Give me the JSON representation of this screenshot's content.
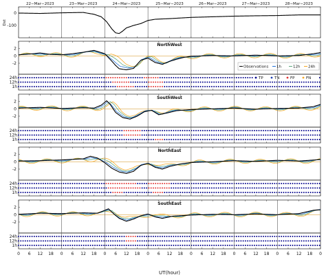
{
  "chart_data": {
    "type": "line",
    "days": [
      "22−Mar−2023",
      "23−Mar−2023",
      "24−Mar−2023",
      "25−Mar−2023",
      "26−Mar−2023",
      "27−Mar−2023",
      "28−Mar−2023"
    ],
    "xlabel": "UT(hour)",
    "x_ticks": [
      0,
      6,
      12,
      18
    ],
    "x_range_hours": [
      0,
      168
    ],
    "colors": {
      "observations": "#000000",
      "h1": "#1f6fd6",
      "h12": "#5aa77c",
      "h24": "#f5a623",
      "TP": "#00008b",
      "TN": "#1f3fb0",
      "FP": "#e03030",
      "FN": "#f5a623",
      "zero_line": "#d9a441"
    },
    "dst": {
      "ylabel": "Dst",
      "y_ticks": [
        "0",
        "-100"
      ],
      "ylim": [
        -200,
        50
      ],
      "points": [
        [
          0,
          0
        ],
        [
          12,
          -3
        ],
        [
          24,
          2
        ],
        [
          36,
          5
        ],
        [
          42,
          -10
        ],
        [
          46,
          -30
        ],
        [
          49,
          -70
        ],
        [
          52,
          -130
        ],
        [
          54,
          -160
        ],
        [
          56,
          -165
        ],
        [
          58,
          -145
        ],
        [
          60,
          -120
        ],
        [
          64,
          -100
        ],
        [
          68,
          -85
        ],
        [
          72,
          -60
        ],
        [
          76,
          -50
        ],
        [
          84,
          -45
        ],
        [
          96,
          -35
        ],
        [
          108,
          -30
        ],
        [
          120,
          -25
        ],
        [
          132,
          -22
        ],
        [
          144,
          -20
        ],
        [
          156,
          -15
        ],
        [
          168,
          -15
        ]
      ]
    },
    "panels": [
      {
        "title": "NorthWest",
        "y_ticks": [
          "2",
          "0",
          "-2"
        ],
        "obs": [
          [
            0,
            0.3
          ],
          [
            6,
            0.5
          ],
          [
            12,
            0.8
          ],
          [
            18,
            0.4
          ],
          [
            24,
            0.3
          ],
          [
            30,
            0.6
          ],
          [
            36,
            1.0
          ],
          [
            42,
            1.5
          ],
          [
            48,
            0.6
          ],
          [
            52,
            -1.5
          ],
          [
            54,
            -2.6
          ],
          [
            56,
            -3.5
          ],
          [
            60,
            -3.8
          ],
          [
            64,
            -3.4
          ],
          [
            68,
            -1.2
          ],
          [
            72,
            -0.6
          ],
          [
            76,
            -1.8
          ],
          [
            80,
            -2.3
          ],
          [
            84,
            -1.5
          ],
          [
            88,
            -0.9
          ],
          [
            92,
            -0.4
          ],
          [
            96,
            -0.1
          ],
          [
            108,
            0.1
          ],
          [
            120,
            0.0
          ],
          [
            132,
            0.2
          ],
          [
            144,
            0.0
          ],
          [
            156,
            0.1
          ],
          [
            164,
            0.6
          ],
          [
            168,
            0.9
          ]
        ],
        "series": [
          {
            "name": "1h",
            "dx": 0.5,
            "amp": 0.85,
            "wob": 0.15
          },
          {
            "name": "12h",
            "dx": 2.0,
            "amp": 0.75,
            "wob": 0.35
          },
          {
            "name": "24h",
            "dx": 3.5,
            "amp": 0.6,
            "wob": 0.6
          }
        ],
        "events": {
          "h24": [
            [
              48,
              60
            ],
            [
              70,
              78
            ]
          ],
          "h12": [
            [
              52,
              62
            ],
            [
              72,
              80
            ]
          ],
          "h1": [
            [
              54,
              64
            ],
            [
              72,
              80
            ]
          ]
        },
        "legend": {
          "lines": [
            "Observations",
            "1h",
            "12h",
            "24h"
          ],
          "classes": [
            "TP",
            "TN",
            "FP",
            "FN"
          ]
        }
      },
      {
        "title": "SouthWest",
        "y_ticks": [
          "2",
          "0",
          "-2"
        ],
        "obs": [
          [
            0,
            0.2
          ],
          [
            12,
            0.4
          ],
          [
            24,
            0.1
          ],
          [
            36,
            0.3
          ],
          [
            42,
            0.2
          ],
          [
            46,
            1.0
          ],
          [
            49,
            2.2
          ],
          [
            51,
            1.2
          ],
          [
            54,
            -1.0
          ],
          [
            58,
            -2.4
          ],
          [
            62,
            -2.8
          ],
          [
            66,
            -2.0
          ],
          [
            70,
            -0.8
          ],
          [
            74,
            -0.4
          ],
          [
            78,
            -1.6
          ],
          [
            82,
            -1.2
          ],
          [
            88,
            -0.5
          ],
          [
            96,
            -0.2
          ],
          [
            108,
            0.0
          ],
          [
            120,
            0.2
          ],
          [
            132,
            -0.1
          ],
          [
            144,
            0.1
          ],
          [
            156,
            0.2
          ],
          [
            164,
            0.6
          ],
          [
            168,
            1.2
          ]
        ],
        "series": [
          {
            "name": "1h",
            "dx": 0.5,
            "amp": 0.85,
            "wob": 0.15
          },
          {
            "name": "12h",
            "dx": 2.0,
            "amp": 0.75,
            "wob": 0.35
          },
          {
            "name": "24h",
            "dx": 3.5,
            "amp": 0.6,
            "wob": 0.6
          }
        ],
        "events": {
          "h24": [
            [
              58,
              68
            ]
          ],
          "h12": [
            [
              58,
              68
            ]
          ],
          "h1": [
            [
              76,
              80
            ]
          ]
        }
      },
      {
        "title": "NorthEast",
        "y_ticks": [
          "2",
          "0",
          "-2"
        ],
        "obs": [
          [
            0,
            0.2
          ],
          [
            12,
            0.3
          ],
          [
            24,
            0.5
          ],
          [
            36,
            0.8
          ],
          [
            40,
            1.5
          ],
          [
            44,
            1.0
          ],
          [
            48,
            -0.3
          ],
          [
            52,
            -1.8
          ],
          [
            56,
            -2.8
          ],
          [
            60,
            -3.2
          ],
          [
            64,
            -2.6
          ],
          [
            68,
            -1.0
          ],
          [
            72,
            -0.4
          ],
          [
            76,
            -1.5
          ],
          [
            80,
            -2.0
          ],
          [
            84,
            -1.3
          ],
          [
            90,
            -0.6
          ],
          [
            96,
            -0.2
          ],
          [
            108,
            0.0
          ],
          [
            120,
            0.3
          ],
          [
            132,
            0.1
          ],
          [
            144,
            0.4
          ],
          [
            156,
            0.2
          ],
          [
            168,
            0.6
          ]
        ],
        "series": [
          {
            "name": "1h",
            "dx": 0.5,
            "amp": 0.85,
            "wob": 0.15
          },
          {
            "name": "12h",
            "dx": 2.0,
            "amp": 0.75,
            "wob": 0.35
          },
          {
            "name": "24h",
            "dx": 3.5,
            "amp": 0.6,
            "wob": 0.6
          }
        ],
        "events": {
          "h24": [
            [
              48,
              66
            ],
            [
              72,
              84
            ]
          ],
          "h12": [
            [
              50,
              68
            ],
            [
              72,
              84
            ]
          ],
          "h1": [
            [
              52,
              58
            ],
            [
              74,
              80
            ]
          ]
        }
      },
      {
        "title": "SouthEast",
        "y_ticks": [
          "2",
          "0",
          "-2"
        ],
        "obs": [
          [
            0,
            0.1
          ],
          [
            12,
            0.4
          ],
          [
            24,
            0.3
          ],
          [
            36,
            0.5
          ],
          [
            44,
            0.4
          ],
          [
            48,
            1.2
          ],
          [
            50,
            1.6
          ],
          [
            53,
            0.2
          ],
          [
            56,
            -1.0
          ],
          [
            60,
            -1.8
          ],
          [
            64,
            -1.2
          ],
          [
            68,
            -0.3
          ],
          [
            72,
            0.2
          ],
          [
            76,
            -0.6
          ],
          [
            80,
            -1.0
          ],
          [
            86,
            -0.4
          ],
          [
            96,
            -0.1
          ],
          [
            108,
            0.1
          ],
          [
            120,
            0.0
          ],
          [
            132,
            0.2
          ],
          [
            144,
            0.0
          ],
          [
            156,
            0.3
          ],
          [
            164,
            1.2
          ],
          [
            168,
            1.4
          ]
        ],
        "series": [
          {
            "name": "1h",
            "dx": 0.5,
            "amp": 0.85,
            "wob": 0.15
          },
          {
            "name": "12h",
            "dx": 2.0,
            "amp": 0.75,
            "wob": 0.35
          },
          {
            "name": "24h",
            "dx": 3.5,
            "amp": 0.6,
            "wob": 0.6
          }
        ],
        "events": {
          "h24": [
            [
              60,
              66
            ]
          ],
          "h12": [
            [
              60,
              66
            ]
          ],
          "h1": []
        }
      }
    ],
    "horizons": [
      "24h",
      "12h",
      "1h"
    ]
  }
}
